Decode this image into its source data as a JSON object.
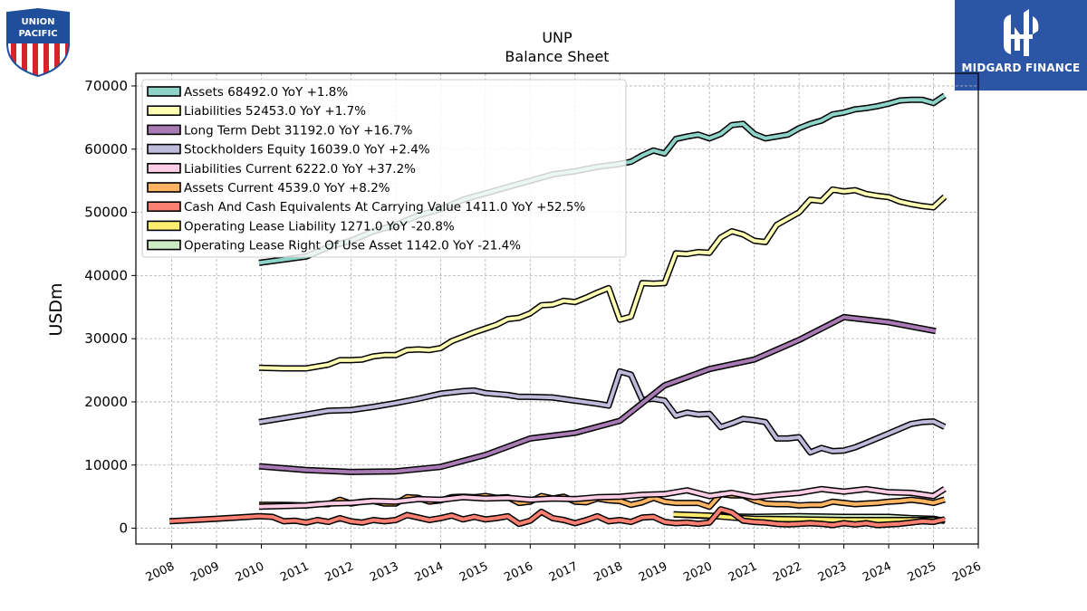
{
  "logos": {
    "left_text_1": "UNION",
    "left_text_2": "PACIFIC",
    "right_text": "MIDGARD FINANCE"
  },
  "colors": {
    "assets": "#8dd3c7",
    "liabilities": "#ffffb3",
    "long_term_debt": "#a97bb5",
    "equity": "#bebada",
    "liabilities_current": "#fccde5",
    "assets_current": "#fdb462",
    "cash": "#fb8072",
    "op_lease_liability": "#ffed6f",
    "op_lease_rou": "#ccebc5",
    "brand_blue": "#2c55a6"
  },
  "chart_data": {
    "type": "line",
    "title": "UNP",
    "subtitle": "Balance  Sheet",
    "ylabel": "USDm",
    "xlabel": "",
    "xlim": [
      2007.2,
      2026.0
    ],
    "ylim": [
      -2500,
      72000
    ],
    "yticks": [
      0,
      10000,
      20000,
      30000,
      40000,
      50000,
      60000,
      70000
    ],
    "ytick_labels": [
      "0",
      "10000",
      "20000",
      "30000",
      "40000",
      "50000",
      "60000",
      "70000"
    ],
    "xticks": [
      2008,
      2009,
      2010,
      2011,
      2012,
      2013,
      2014,
      2015,
      2016,
      2017,
      2018,
      2019,
      2020,
      2021,
      2022,
      2023,
      2024,
      2025,
      2026
    ],
    "xtick_labels": [
      "2008",
      "2009",
      "2010",
      "2011",
      "2012",
      "2013",
      "2014",
      "2015",
      "2016",
      "2017",
      "2018",
      "2019",
      "2020",
      "2021",
      "2022",
      "2023",
      "2024",
      "2025",
      "2026"
    ],
    "grid": true,
    "legend_position": "top-left",
    "series": [
      {
        "name": "Assets",
        "legend": "Assets  68492.0 YoY +1.8%",
        "color_key": "assets",
        "x": [
          2009.95,
          2011.0,
          2011.5,
          2012.0,
          2012.5,
          2013.0,
          2013.5,
          2014.0,
          2014.5,
          2015.0,
          2015.5,
          2016.0,
          2016.5,
          2017.0,
          2017.5,
          2017.95,
          2018.25,
          2018.5,
          2018.75,
          2019.0,
          2019.25,
          2019.5,
          2019.75,
          2020.0,
          2020.25,
          2020.5,
          2020.75,
          2021.0,
          2021.25,
          2021.5,
          2021.75,
          2022.0,
          2022.25,
          2022.5,
          2022.75,
          2023.0,
          2023.25,
          2023.5,
          2023.75,
          2024.0,
          2024.25,
          2024.5,
          2024.75,
          2025.0,
          2025.25
        ],
        "y": [
          42000,
          43000,
          44500,
          45500,
          47000,
          48000,
          49500,
          50500,
          52000,
          53000,
          54000,
          55000,
          56000,
          56500,
          57200,
          57600,
          58000,
          59000,
          59800,
          59300,
          61600,
          62000,
          62300,
          61700,
          62400,
          63800,
          64000,
          62400,
          61700,
          62000,
          62300,
          63300,
          64000,
          64500,
          65500,
          65800,
          66300,
          66500,
          66800,
          67200,
          67700,
          67800,
          67800,
          67300,
          68492
        ]
      },
      {
        "name": "Liabilities",
        "legend": "Liabilities  52453.0 YoY +1.7%",
        "color_key": "liabilities",
        "x": [
          2009.95,
          2010.5,
          2011.0,
          2011.5,
          2011.75,
          2012.0,
          2012.25,
          2012.5,
          2012.75,
          2013.0,
          2013.25,
          2013.5,
          2013.75,
          2014.0,
          2014.25,
          2014.5,
          2014.75,
          2015.0,
          2015.25,
          2015.5,
          2015.75,
          2016.0,
          2016.25,
          2016.5,
          2016.75,
          2017.0,
          2017.25,
          2017.5,
          2017.75,
          2018.0,
          2018.25,
          2018.5,
          2018.75,
          2019.0,
          2019.25,
          2019.5,
          2019.75,
          2020.0,
          2020.25,
          2020.5,
          2020.75,
          2021.0,
          2021.25,
          2021.5,
          2021.75,
          2022.0,
          2022.25,
          2022.5,
          2022.75,
          2023.0,
          2023.25,
          2023.5,
          2023.75,
          2024.0,
          2024.25,
          2024.5,
          2024.75,
          2025.0,
          2025.25
        ],
        "y": [
          25400,
          25300,
          25300,
          25900,
          26600,
          26600,
          26700,
          27200,
          27400,
          27400,
          28200,
          28300,
          28200,
          28500,
          29600,
          30300,
          31000,
          31600,
          32200,
          33100,
          33300,
          34000,
          35300,
          35400,
          36000,
          35800,
          36500,
          37300,
          38000,
          33000,
          33500,
          38800,
          38700,
          38800,
          43500,
          43400,
          43700,
          43600,
          46000,
          47000,
          46500,
          45500,
          45300,
          48000,
          49000,
          50000,
          52000,
          51800,
          53600,
          53300,
          53500,
          52900,
          52600,
          52400,
          51700,
          51300,
          51000,
          50800,
          52453
        ]
      },
      {
        "name": "Long Term Debt",
        "legend": "Long Term Debt  31192.0 YoY +16.7%",
        "color_key": "long_term_debt",
        "x": [
          2009.95,
          2011.0,
          2012.0,
          2013.0,
          2014.0,
          2015.0,
          2016.0,
          2017.0,
          2018.0,
          2019.0,
          2020.0,
          2021.0,
          2022.0,
          2023.0,
          2024.0,
          2025.05
        ],
        "y": [
          9800,
          9200,
          8900,
          9000,
          9700,
          11600,
          14200,
          15100,
          17000,
          22600,
          25200,
          26700,
          29800,
          33400,
          32600,
          31192
        ]
      },
      {
        "name": "Stockholders Equity",
        "legend": "Stockholders Equity  16039.0 YoY +2.4%",
        "color_key": "equity",
        "x": [
          2009.95,
          2011.0,
          2011.5,
          2012.0,
          2012.5,
          2013.0,
          2013.5,
          2014.0,
          2014.5,
          2014.75,
          2015.0,
          2015.5,
          2015.75,
          2016.0,
          2016.5,
          2017.0,
          2017.5,
          2017.75,
          2018.0,
          2018.25,
          2018.5,
          2018.75,
          2019.0,
          2019.25,
          2019.5,
          2019.75,
          2020.0,
          2020.25,
          2020.5,
          2020.75,
          2021.0,
          2021.25,
          2021.5,
          2021.75,
          2022.0,
          2022.25,
          2022.5,
          2022.75,
          2023.0,
          2023.25,
          2023.5,
          2024.0,
          2024.5,
          2024.75,
          2025.0,
          2025.25
        ],
        "y": [
          16800,
          18000,
          18600,
          18700,
          19200,
          19800,
          20500,
          21300,
          21700,
          21800,
          21400,
          21100,
          20800,
          20800,
          20700,
          20200,
          19700,
          19400,
          24800,
          24300,
          20300,
          20500,
          20200,
          17800,
          18300,
          18000,
          18100,
          16000,
          16600,
          17300,
          17100,
          16800,
          14200,
          14200,
          14400,
          12000,
          12700,
          12200,
          12300,
          12800,
          13500,
          15000,
          16500,
          16800,
          16900,
          16039
        ]
      },
      {
        "name": "Liabilities Current",
        "legend": "Liabilities Current  6222.0 YoY +37.2%",
        "color_key": "liabilities_current",
        "x": [
          2009.95,
          2011.0,
          2011.5,
          2012.0,
          2012.5,
          2013.0,
          2013.5,
          2014.0,
          2014.5,
          2015.0,
          2015.5,
          2016.0,
          2016.5,
          2017.0,
          2017.5,
          2018.0,
          2018.5,
          2019.0,
          2019.5,
          2020.0,
          2020.5,
          2021.0,
          2021.5,
          2022.0,
          2022.5,
          2023.0,
          2023.5,
          2024.0,
          2024.5,
          2025.0,
          2025.25
        ],
        "y": [
          3400,
          3600,
          3900,
          4000,
          4300,
          4200,
          4600,
          4500,
          4900,
          4700,
          4800,
          4500,
          4700,
          4600,
          4900,
          5000,
          5300,
          5400,
          6000,
          5100,
          5600,
          4900,
          5300,
          5600,
          6200,
          5800,
          6200,
          5700,
          5600,
          5100,
          6222
        ]
      },
      {
        "name": "Assets Current",
        "legend": "Assets Current  4539.0 YoY +8.2%",
        "color_key": "assets_current",
        "x": [
          2009.95,
          2010.5,
          2011.0,
          2011.25,
          2011.5,
          2011.75,
          2012.0,
          2012.25,
          2012.5,
          2012.75,
          2013.0,
          2013.25,
          2013.5,
          2013.75,
          2014.0,
          2014.25,
          2014.5,
          2014.75,
          2015.0,
          2015.25,
          2015.5,
          2015.75,
          2016.0,
          2016.25,
          2016.5,
          2016.75,
          2017.0,
          2017.25,
          2017.5,
          2017.75,
          2018.0,
          2018.25,
          2018.5,
          2018.75,
          2019.0,
          2019.25,
          2019.5,
          2019.75,
          2020.0,
          2020.25,
          2020.5,
          2020.75,
          2021.0,
          2021.25,
          2021.5,
          2021.75,
          2022.0,
          2022.25,
          2022.5,
          2022.75,
          2023.0,
          2023.25,
          2023.5,
          2023.75,
          2024.0,
          2024.25,
          2024.5,
          2024.75,
          2025.0,
          2025.25
        ],
        "y": [
          3700,
          3700,
          3600,
          3800,
          3800,
          4500,
          3900,
          4200,
          4300,
          3900,
          3900,
          4900,
          4800,
          4200,
          4400,
          4900,
          5000,
          4900,
          5100,
          4800,
          4900,
          4000,
          4200,
          5100,
          4700,
          5000,
          4200,
          4100,
          4700,
          4400,
          4300,
          3700,
          4100,
          4800,
          4200,
          4000,
          4000,
          4000,
          3400,
          5400,
          5200,
          5200,
          4400,
          3900,
          3800,
          3800,
          3600,
          3700,
          3700,
          4200,
          4000,
          3800,
          3900,
          4000,
          4200,
          4300,
          4500,
          4300,
          4000,
          4539
        ]
      },
      {
        "name": "Cash And Cash Equivalents At Carrying Value",
        "legend": "Cash And Cash Equivalents At Carrying Value  1411.0 YoY +52.5%",
        "color_key": "cash",
        "x": [
          2007.95,
          2009.0,
          2009.95,
          2010.25,
          2010.5,
          2010.75,
          2011.0,
          2011.25,
          2011.5,
          2011.75,
          2012.0,
          2012.25,
          2012.5,
          2012.75,
          2013.0,
          2013.25,
          2013.5,
          2013.75,
          2014.0,
          2014.25,
          2014.5,
          2014.75,
          2015.0,
          2015.25,
          2015.5,
          2015.75,
          2016.0,
          2016.25,
          2016.5,
          2016.75,
          2017.0,
          2017.25,
          2017.5,
          2017.75,
          2018.0,
          2018.25,
          2018.5,
          2018.75,
          2019.0,
          2019.25,
          2019.5,
          2019.75,
          2020.0,
          2020.25,
          2020.5,
          2020.75,
          2021.0,
          2021.25,
          2021.5,
          2021.75,
          2022.0,
          2022.25,
          2022.5,
          2022.75,
          2023.0,
          2023.25,
          2023.5,
          2023.75,
          2024.0,
          2024.25,
          2024.5,
          2024.75,
          2025.0,
          2025.25
        ],
        "y": [
          1100,
          1500,
          1900,
          1800,
          1100,
          1200,
          900,
          1300,
          1000,
          1600,
          1100,
          900,
          1300,
          1100,
          1300,
          2100,
          1700,
          1300,
          1600,
          2000,
          1400,
          1800,
          1400,
          1600,
          1900,
          700,
          1200,
          2600,
          1600,
          1300,
          800,
          1300,
          1900,
          1100,
          1300,
          1000,
          1700,
          1800,
          1000,
          800,
          900,
          700,
          900,
          3000,
          2500,
          1200,
          1000,
          900,
          700,
          600,
          700,
          800,
          700,
          500,
          800,
          600,
          800,
          500,
          600,
          700,
          900,
          1100,
          1000,
          1411
        ]
      },
      {
        "name": "Operating Lease Liability",
        "legend": "Operating Lease Liability  1271.0 YoY -20.8%",
        "color_key": "op_lease_liability",
        "x": [
          2019.2,
          2020.0,
          2020.5,
          2021.0,
          2022.0,
          2023.0,
          2024.0,
          2024.5,
          2025.0,
          2025.25
        ],
        "y": [
          2200,
          2000,
          1700,
          1500,
          1400,
          1300,
          1300,
          1300,
          1300,
          1271
        ]
      },
      {
        "name": "Operating Lease Right Of Use Asset",
        "legend": "Operating Lease Right Of Use Asset  1142.0 YoY -21.4%",
        "color_key": "op_lease_rou",
        "x": [
          2019.2,
          2020.0,
          2021.0,
          2022.0,
          2023.0,
          2024.0,
          2024.5,
          2025.0,
          2025.25
        ],
        "y": [
          2200,
          1900,
          1800,
          1900,
          1800,
          1800,
          1600,
          1500,
          1142
        ]
      }
    ]
  }
}
